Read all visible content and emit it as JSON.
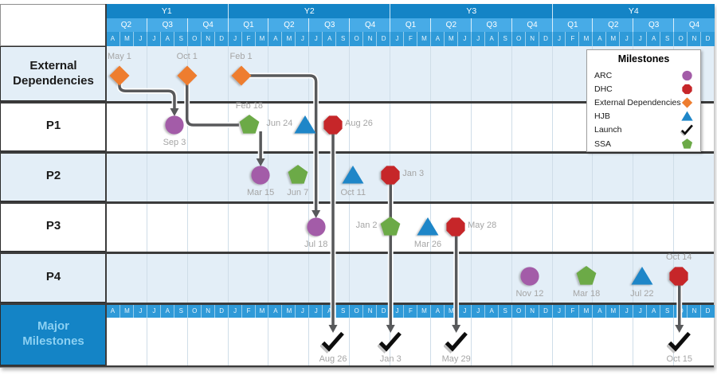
{
  "chart_data": {
    "type": "milestone-timeline",
    "time_axis": {
      "start": "Apr Y1",
      "years": [
        {
          "label": "Y1",
          "months": 9
        },
        {
          "label": "Y2",
          "months": 12
        },
        {
          "label": "Y3",
          "months": 12
        },
        {
          "label": "Y4",
          "months": 12
        }
      ],
      "quarters": [
        "Q2",
        "Q3",
        "Q4",
        "Q1",
        "Q2",
        "Q3",
        "Q4",
        "Q1",
        "Q2",
        "Q3",
        "Q4",
        "Q1",
        "Q2",
        "Q3",
        "Q4"
      ],
      "month_letters": [
        "A",
        "M",
        "J",
        "J",
        "A",
        "S",
        "O",
        "N",
        "D",
        "J",
        "F",
        "M",
        "A",
        "M",
        "J",
        "J",
        "A",
        "S",
        "O",
        "N",
        "D",
        "J",
        "F",
        "M",
        "A",
        "M",
        "J",
        "J",
        "A",
        "S",
        "O",
        "N",
        "D",
        "J",
        "F",
        "M",
        "A",
        "M",
        "J",
        "J",
        "A",
        "S",
        "O",
        "N",
        "D"
      ]
    },
    "rows": [
      {
        "label": "External Dependencies",
        "milestones": [
          {
            "date": "May 1",
            "category": "External Dependencies",
            "m": 1.0,
            "label_pos": "above"
          },
          {
            "date": "Oct 1",
            "category": "External Dependencies",
            "m": 6.0,
            "label_pos": "above"
          },
          {
            "date": "Feb 1",
            "category": "External Dependencies",
            "m": 10.0,
            "label_pos": "above"
          }
        ]
      },
      {
        "label": "P1",
        "milestones": [
          {
            "date": "Sep 3",
            "category": "ARC",
            "m": 5.07,
            "label_pos": "below"
          },
          {
            "date": "Feb 18",
            "category": "SSA",
            "m": 10.61,
            "label_pos": "above"
          },
          {
            "date": "Jun 24",
            "category": "HJB",
            "m": 14.77,
            "label_pos": "left"
          },
          {
            "date": "Aug 26",
            "category": "DHC",
            "m": 16.81,
            "label_pos": "right"
          }
        ]
      },
      {
        "label": "P2",
        "milestones": [
          {
            "date": "Mar 15",
            "category": "ARC",
            "m": 11.45,
            "label_pos": "below"
          },
          {
            "date": "Jun 7",
            "category": "SSA",
            "m": 14.2,
            "label_pos": "below"
          },
          {
            "date": "Oct 11",
            "category": "HJB",
            "m": 18.3,
            "label_pos": "below"
          },
          {
            "date": "Jan 3",
            "category": "DHC",
            "m": 21.07,
            "label_pos": "right"
          }
        ]
      },
      {
        "label": "P3",
        "milestones": [
          {
            "date": "Jul 18",
            "category": "ARC",
            "m": 15.55,
            "label_pos": "below"
          },
          {
            "date": "Jan 2",
            "category": "SSA",
            "m": 21.03,
            "label_pos": "left"
          },
          {
            "date": "Mar 26",
            "category": "HJB",
            "m": 23.83,
            "label_pos": "below"
          },
          {
            "date": "May 28",
            "category": "DHC",
            "m": 25.9,
            "label_pos": "right"
          }
        ]
      },
      {
        "label": "P4",
        "milestones": [
          {
            "date": "Nov 12",
            "category": "ARC",
            "m": 31.37,
            "label_pos": "below"
          },
          {
            "date": "Mar 18",
            "category": "SSA",
            "m": 35.57,
            "label_pos": "below"
          },
          {
            "date": "Jul 22",
            "category": "HJB",
            "m": 39.68,
            "label_pos": "below"
          },
          {
            "date": "Oct 14",
            "category": "DHC",
            "m": 42.42,
            "label_pos": "above"
          }
        ]
      },
      {
        "label": "Major Milestones",
        "milestones": [
          {
            "date": "Aug 26",
            "category": "Launch",
            "m": 16.81,
            "label_pos": "below"
          },
          {
            "date": "Jan 3",
            "category": "Launch",
            "m": 21.07,
            "label_pos": "below"
          },
          {
            "date": "May 29",
            "category": "Launch",
            "m": 25.93,
            "label_pos": "below"
          },
          {
            "date": "Oct 15",
            "category": "Launch",
            "m": 42.45,
            "label_pos": "below"
          }
        ]
      }
    ],
    "connectors": [
      {
        "from_row": "External Dependencies",
        "from_date": "May 1",
        "to_row": "P1",
        "to_date": "Sep 3",
        "route": "down-across-down",
        "arrow": true
      },
      {
        "from_row": "External Dependencies",
        "from_date": "Oct 1",
        "to_row": "P1",
        "to_date": "Feb 18",
        "route": "down-across",
        "arrow": false
      },
      {
        "from_row": "External Dependencies",
        "from_date": "Feb 1",
        "to_row": "P3",
        "to_date": "Jul 18",
        "route": "across-down",
        "arrow": true
      },
      {
        "from_row": "P1",
        "from_date": "Feb 18",
        "to_row": "P2",
        "to_date": "Mar 15",
        "route": "down",
        "arrow": true
      },
      {
        "from_row": "P1",
        "from_date": "Aug 26",
        "to_row": "Major Milestones",
        "to_date": "Aug 26",
        "route": "down",
        "arrow": true
      },
      {
        "from_row": "P2",
        "from_date": "Jan 3",
        "to_row": "Major Milestones",
        "to_date": "Jan 3",
        "route": "down",
        "arrow": true
      },
      {
        "from_row": "P3",
        "from_date": "May 28",
        "to_row": "Major Milestones",
        "to_date": "May 29",
        "route": "down",
        "arrow": true
      },
      {
        "from_row": "P4",
        "from_date": "Oct 14",
        "to_row": "Major Milestones",
        "to_date": "Oct 15",
        "route": "down",
        "arrow": true
      }
    ],
    "legend": {
      "title": "Milestones",
      "entries": [
        {
          "label": "ARC",
          "marker": "circle",
          "color": "#A35CA8"
        },
        {
          "label": "DHC",
          "marker": "octagon",
          "color": "#C62629"
        },
        {
          "label": "External Dependencies",
          "marker": "diamond",
          "color": "#EE7D2F"
        },
        {
          "label": "HJB",
          "marker": "triangle",
          "color": "#1E86C8"
        },
        {
          "label": "Launch",
          "marker": "check",
          "color": "#111111"
        },
        {
          "label": "SSA",
          "marker": "pentagon",
          "color": "#6CAA47"
        }
      ]
    },
    "colors": {
      "year_band": "#1484C6",
      "quarter_band": "#47ABE7",
      "month_band": "#2F9AD8",
      "row_tint": "#E3EEF7",
      "row_white": "#FFFFFF",
      "mm_cell_bg": "#1484C6",
      "mm_cell_text": "#8BD0F2",
      "connector": "#58595B",
      "date_label": "#A5A5A5",
      "gridline": "#CFDDE8",
      "separator": "#3B3B3B"
    }
  }
}
